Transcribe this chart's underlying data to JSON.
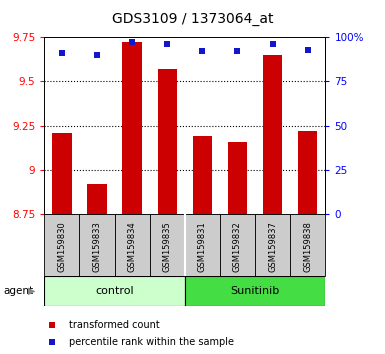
{
  "title": "GDS3109 / 1373064_at",
  "samples": [
    "GSM159830",
    "GSM159833",
    "GSM159834",
    "GSM159835",
    "GSM159831",
    "GSM159832",
    "GSM159837",
    "GSM159838"
  ],
  "transformed_counts": [
    9.21,
    8.92,
    9.72,
    9.57,
    9.19,
    9.16,
    9.65,
    9.22
  ],
  "percentile_ranks": [
    91,
    90,
    97,
    96,
    92,
    92,
    96,
    93
  ],
  "ylim_left": [
    8.75,
    9.75
  ],
  "ylim_right": [
    0,
    100
  ],
  "yticks_left": [
    8.75,
    9.0,
    9.25,
    9.5,
    9.75
  ],
  "yticks_right": [
    0,
    25,
    50,
    75,
    100
  ],
  "ytick_labels_left": [
    "8.75",
    "9",
    "9.25",
    "9.5",
    "9.75"
  ],
  "ytick_labels_right": [
    "0",
    "25",
    "50",
    "75",
    "100%"
  ],
  "grid_lines": [
    9.0,
    9.25,
    9.5
  ],
  "bar_color": "#cc0000",
  "dot_color": "#1515cc",
  "bar_width": 0.55,
  "sample_bg_color": "#cccccc",
  "control_color": "#ccffcc",
  "sunitinib_color": "#44dd44",
  "legend_bar_label": "transformed count",
  "legend_dot_label": "percentile rank within the sample",
  "agent_label": "agent"
}
